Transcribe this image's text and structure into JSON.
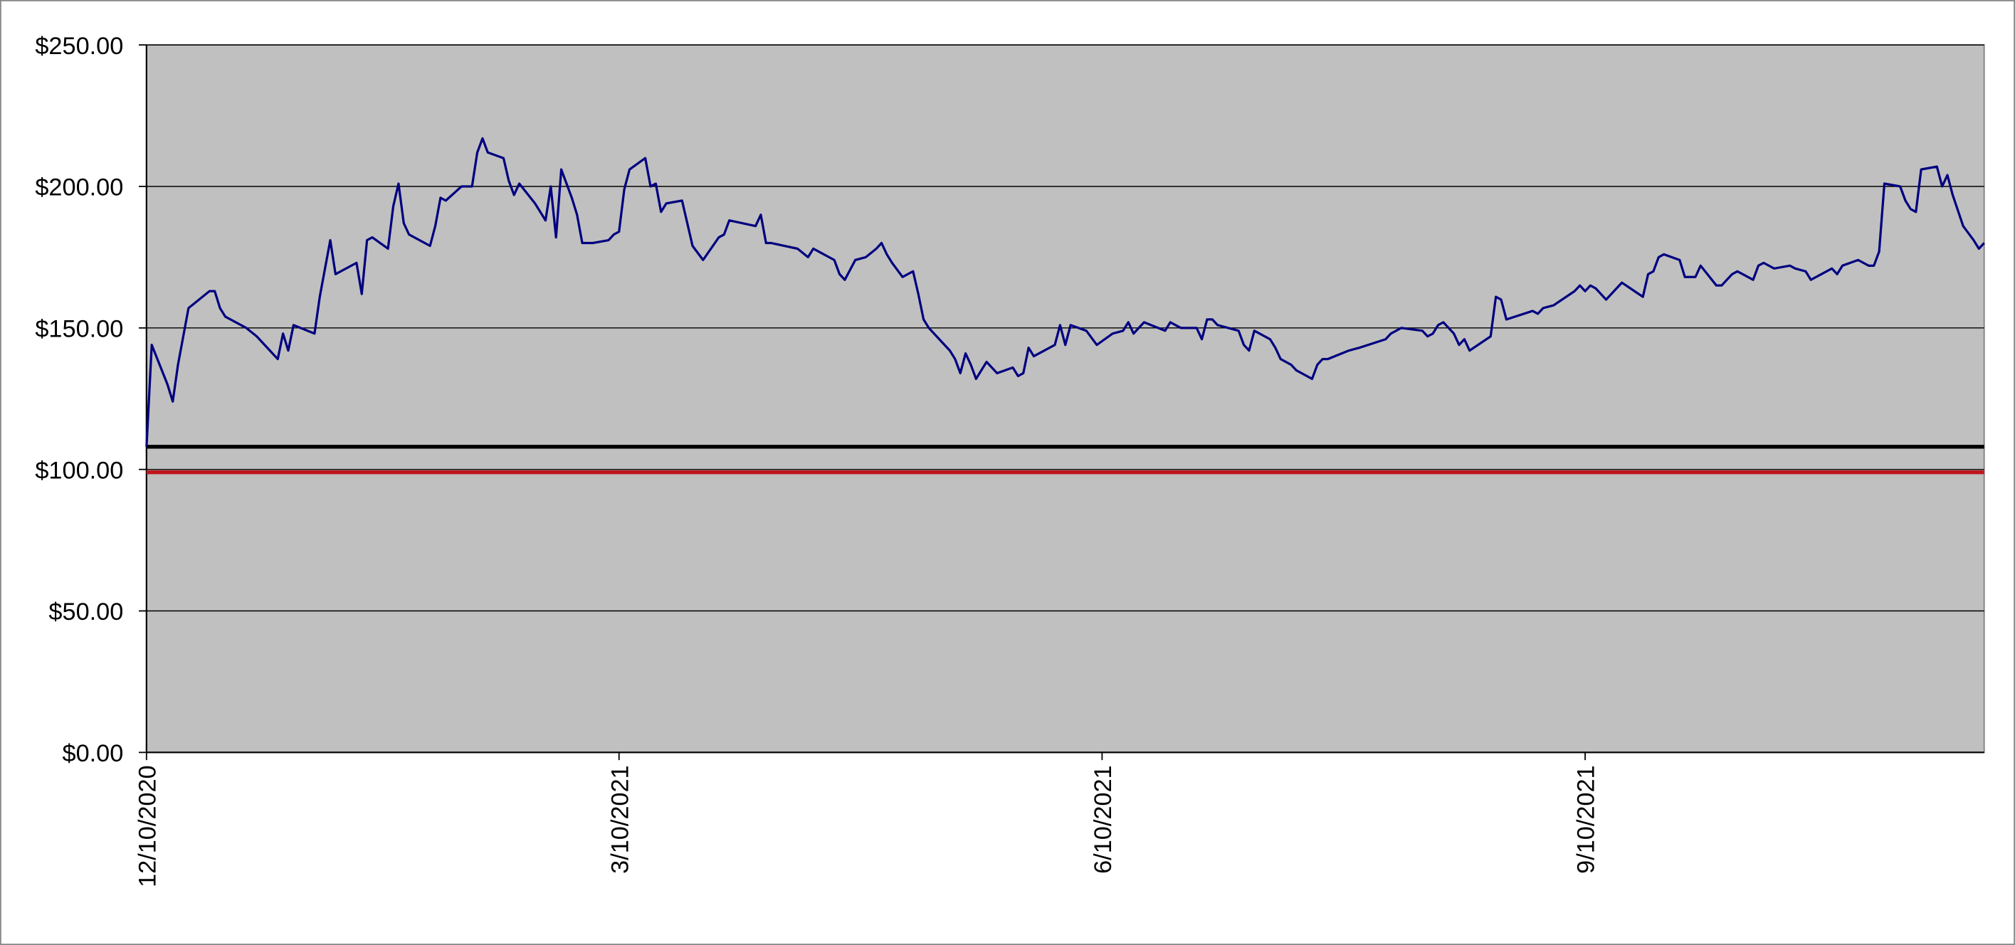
{
  "chart_data": {
    "type": "line",
    "x": [
      "12/10/2020",
      "12/11/2020",
      "12/14/2020",
      "12/15/2020",
      "12/16/2020",
      "12/18/2020",
      "12/22/2020",
      "12/23/2020",
      "12/24/2020",
      "12/25/2020",
      "12/29/2020",
      "12/31/2020",
      "1/4/2021",
      "1/5/2021",
      "1/6/2021",
      "1/7/2021",
      "1/11/2021",
      "1/12/2021",
      "1/14/2021",
      "1/15/2021",
      "1/19/2021",
      "1/20/2021",
      "1/21/2021",
      "1/22/2021",
      "1/25/2021",
      "1/26/2021",
      "1/27/2021",
      "1/28/2021",
      "1/29/2021",
      "2/2/2021",
      "2/3/2021",
      "2/4/2021",
      "2/5/2021",
      "2/8/2021",
      "2/10/2021",
      "2/11/2021",
      "2/12/2021",
      "2/13/2021",
      "2/16/2021",
      "2/17/2021",
      "2/18/2021",
      "2/19/2021",
      "2/22/2021",
      "2/24/2021",
      "2/25/2021",
      "2/26/2021",
      "2/27/2021",
      "3/1/2021",
      "3/2/2021",
      "3/3/2021",
      "3/5/2021",
      "3/8/2021",
      "3/9/2021",
      "3/10/2021",
      "3/11/2021",
      "3/12/2021",
      "3/15/2021",
      "3/16/2021",
      "3/17/2021",
      "3/18/2021",
      "3/19/2021",
      "3/22/2021",
      "3/24/2021",
      "3/26/2021",
      "3/29/2021",
      "3/30/2021",
      "3/31/2021",
      "4/5/2021",
      "4/6/2021",
      "4/7/2021",
      "4/8/2021",
      "4/13/2021",
      "4/15/2021",
      "4/16/2021",
      "4/20/2021",
      "4/21/2021",
      "4/22/2021",
      "4/24/2021",
      "4/26/2021",
      "4/28/2021",
      "4/29/2021",
      "4/30/2021",
      "5/1/2021",
      "5/3/2021",
      "5/5/2021",
      "5/6/2021",
      "5/7/2021",
      "5/8/2021",
      "5/10/2021",
      "5/12/2021",
      "5/13/2021",
      "5/14/2021",
      "5/15/2021",
      "5/16/2021",
      "5/17/2021",
      "5/19/2021",
      "5/21/2021",
      "5/24/2021",
      "5/25/2021",
      "5/26/2021",
      "5/27/2021",
      "5/28/2021",
      "6/1/2021",
      "6/2/2021",
      "6/3/2021",
      "6/4/2021",
      "6/7/2021",
      "6/9/2021",
      "6/12/2021",
      "6/14/2021",
      "6/15/2021",
      "6/16/2021",
      "6/18/2021",
      "6/22/2021",
      "6/23/2021",
      "6/25/2021",
      "6/28/2021",
      "6/29/2021",
      "6/30/2021",
      "7/1/2021",
      "7/2/2021",
      "7/6/2021",
      "7/7/2021",
      "7/8/2021",
      "7/9/2021",
      "7/12/2021",
      "7/13/2021",
      "7/14/2021",
      "7/16/2021",
      "7/17/2021",
      "7/20/2021",
      "7/21/2021",
      "7/22/2021",
      "7/23/2021",
      "7/27/2021",
      "7/29/2021",
      "8/3/2021",
      "8/4/2021",
      "8/6/2021",
      "8/10/2021",
      "8/11/2021",
      "8/12/2021",
      "8/13/2021",
      "8/14/2021",
      "8/16/2021",
      "8/17/2021",
      "8/18/2021",
      "8/19/2021",
      "8/23/2021",
      "8/24/2021",
      "8/25/2021",
      "8/26/2021",
      "8/31/2021",
      "9/1/2021",
      "9/2/2021",
      "9/4/2021",
      "9/8/2021",
      "9/9/2021",
      "9/10/2021",
      "9/11/2021",
      "9/12/2021",
      "9/14/2021",
      "9/16/2021",
      "9/17/2021",
      "9/21/2021",
      "9/22/2021",
      "9/23/2021",
      "9/24/2021",
      "9/25/2021",
      "9/28/2021",
      "9/29/2021",
      "10/1/2021",
      "10/2/2021",
      "10/5/2021",
      "10/6/2021",
      "10/8/2021",
      "10/9/2021",
      "10/12/2021",
      "10/13/2021",
      "10/14/2021",
      "10/16/2021",
      "10/19/2021",
      "10/20/2021",
      "10/22/2021",
      "10/23/2021",
      "10/26/2021",
      "10/27/2021",
      "10/28/2021",
      "10/29/2021",
      "11/1/2021",
      "11/2/2021",
      "11/3/2021",
      "11/4/2021",
      "11/5/2021",
      "11/6/2021",
      "11/9/2021",
      "11/10/2021",
      "11/11/2021",
      "11/12/2021",
      "11/13/2021",
      "11/16/2021",
      "11/17/2021",
      "11/18/2021",
      "11/19/2021",
      "11/21/2021",
      "11/23/2021",
      "11/24/2021",
      "11/25/2021"
    ],
    "series": [
      {
        "color": "#000080",
        "values": [
          108,
          144,
          130,
          124,
          137,
          157,
          163,
          163,
          157,
          154,
          150,
          147,
          139,
          148,
          142,
          151,
          148,
          161,
          181,
          169,
          173,
          162,
          181,
          182,
          178,
          193,
          201,
          187,
          183,
          179,
          186,
          196,
          195,
          200,
          200,
          212,
          217,
          212,
          210,
          202,
          197,
          201,
          194,
          188,
          200,
          182,
          206,
          196,
          190,
          180,
          180,
          181,
          183,
          184,
          199,
          206,
          210,
          200,
          201,
          191,
          194,
          195,
          179,
          174,
          182,
          183,
          188,
          186,
          190,
          180,
          180,
          178,
          175,
          178,
          174,
          169,
          167,
          174,
          175,
          178,
          180,
          176,
          173,
          168,
          170,
          162,
          153,
          150,
          146,
          142,
          139,
          134,
          141,
          137,
          132,
          138,
          134,
          136,
          133,
          134,
          143,
          140,
          144,
          151,
          144,
          151,
          149,
          144,
          148,
          149,
          152,
          148,
          152,
          149,
          152,
          150,
          150,
          146,
          153,
          153,
          151,
          149,
          144,
          142,
          149,
          146,
          143,
          139,
          137,
          135,
          132,
          137,
          139,
          139,
          142,
          143,
          146,
          148,
          150,
          149,
          147,
          148,
          151,
          152,
          148,
          144,
          146,
          142,
          147,
          161,
          160,
          153,
          156,
          155,
          157,
          158,
          163,
          165,
          163,
          165,
          164,
          160,
          164,
          166,
          161,
          169,
          170,
          175,
          176,
          174,
          168,
          168,
          172,
          165,
          165,
          169,
          170,
          167,
          172,
          173,
          171,
          172,
          171,
          170,
          167,
          170,
          171,
          169,
          172,
          174,
          173,
          172,
          172,
          177,
          201,
          200,
          195,
          192,
          191,
          206,
          207,
          200,
          204,
          197,
          186,
          181,
          178,
          180
        ]
      }
    ],
    "reference_lines": [
      {
        "value": 108,
        "color": "#000000"
      },
      {
        "value": 99,
        "color": "#c0141c"
      }
    ],
    "xlim": [
      "12/10/2020",
      "11/25/2021"
    ],
    "xticks": [
      "12/10/2020",
      "3/10/2021",
      "6/10/2021",
      "9/10/2021"
    ],
    "ylim": [
      0,
      250
    ],
    "yticks": [
      {
        "value": 0,
        "label": "$0.00"
      },
      {
        "value": 50,
        "label": "$50.00"
      },
      {
        "value": 100,
        "label": "$100.00"
      },
      {
        "value": 150,
        "label": "$150.00"
      },
      {
        "value": 200,
        "label": "$200.00"
      },
      {
        "value": 250,
        "label": "$250.00"
      }
    ],
    "grid": true
  }
}
